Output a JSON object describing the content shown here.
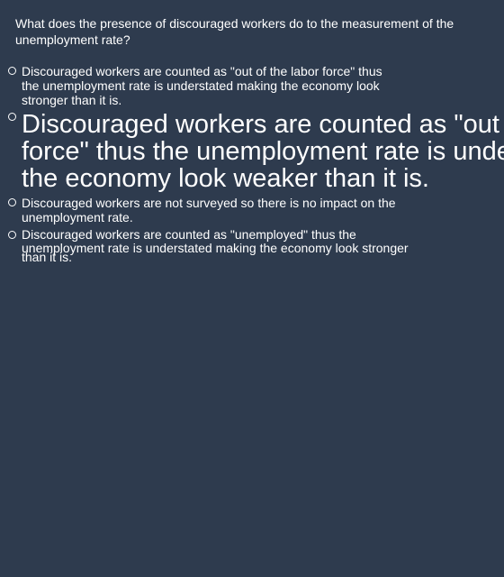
{
  "quiz": {
    "question": "What does the presence of discouraged workers do to the measurement of the unemployment rate?",
    "options": [
      {
        "lines": [
          "Discouraged workers are counted as \"out of the labor force\" thus",
          "the unemployment rate is understated making the economy look",
          "stronger than it is."
        ]
      },
      {
        "lines": [
          "Discouraged workers are counted as \"out of the labor",
          "force\" thus the unemployment rate is understated making",
          "the economy look weaker than it is."
        ]
      },
      {
        "lines": [
          "Discouraged workers are not surveyed so there is no impact on the",
          "unemployment rate."
        ]
      },
      {
        "lines": [
          "Discouraged workers are counted as \"unemployed\" thus the",
          "unemployment rate is understated making the economy look stronger",
          "than it is."
        ]
      }
    ]
  }
}
